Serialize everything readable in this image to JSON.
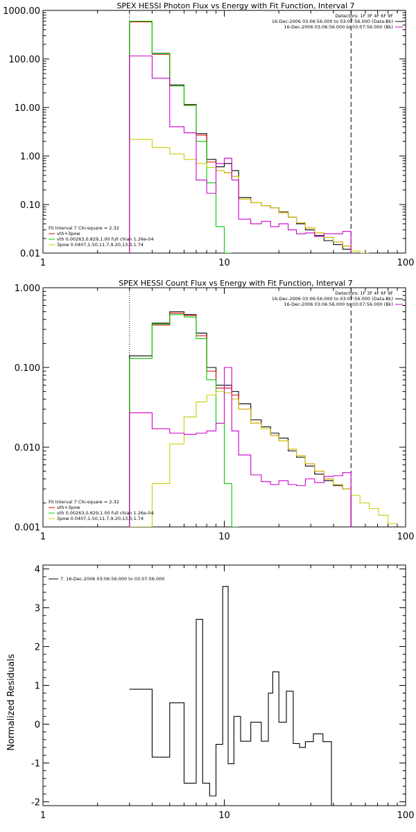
{
  "chart_data": [
    {
      "type": "line",
      "step": true,
      "title": "SPEX HESSI Photon Flux vs Energy with Fit Function, Interval 7",
      "xlabel": "",
      "ylabel": "",
      "xscale": "log",
      "yscale": "log",
      "xlim": [
        1,
        100
      ],
      "ylim": [
        0.01,
        1000
      ],
      "xticks": [
        1,
        10,
        100
      ],
      "xtick_labels": [
        "1",
        "10",
        "100"
      ],
      "yticks": [
        0.01,
        0.1,
        1,
        10,
        100,
        1000
      ],
      "ytick_labels": [
        "0.01",
        "0.10",
        "1.00",
        "10.00",
        "100.00",
        "1000.00"
      ],
      "grid": false,
      "fit_range_markers": [
        3,
        50
      ],
      "detector_legend": {
        "placement": "top-right",
        "header": "Detectors: 1F 3F 4F 6F 9F",
        "entries": [
          {
            "label": "16-Dec-2006 03:06:56.000 to 03:07:56.000 (Data-Bk)",
            "color": "#000000"
          },
          {
            "label": "16-Dec-2006 03:06:56.000 to 03:07:56.000 (Bk)",
            "color": "#cc00cc"
          }
        ]
      },
      "fit_legend": {
        "placement": "bottom-left",
        "header": "Fit Interval 7   Chi-square = 2.32",
        "entries": [
          {
            "label": "vth+3pow",
            "color": "#dd0000"
          },
          {
            "label": "vth 0.00263,0.829,1.00  full chian 1.26e-04",
            "color": "#00cc00"
          },
          {
            "label": "3pow 0.0407,1.50,11.7,9.20,13.0,1.74",
            "color": "#cccc00"
          }
        ]
      },
      "edges": [
        3,
        4,
        5,
        6,
        7,
        8,
        9,
        10,
        11,
        12,
        14,
        16,
        18,
        20,
        22.5,
        25,
        28,
        31.5,
        35.5,
        40,
        45,
        50,
        56,
        63
      ],
      "series": [
        {
          "name": "Data-Bk",
          "color": "#000000",
          "values": [
            600,
            130,
            29,
            11.5,
            2.9,
            0.85,
            0.6,
            0.7,
            0.5,
            0.14,
            0.11,
            0.095,
            0.085,
            0.07,
            0.055,
            0.04,
            0.03,
            0.023,
            0.018,
            0.015,
            0.012,
            null,
            null
          ]
        },
        {
          "name": "vth+3pow",
          "color": "#dd0000",
          "values": [
            580,
            125,
            28,
            11.2,
            2.7,
            0.75,
            0.5,
            0.45,
            0.38,
            0.13,
            0.11,
            0.095,
            0.085,
            0.068,
            0.055,
            0.042,
            0.033,
            0.026,
            0.021,
            0.017,
            0.014,
            null,
            null
          ]
        },
        {
          "name": "vth",
          "color": "#00cc00",
          "values": [
            600,
            128,
            28,
            11,
            2.0,
            0.28,
            0.035,
            0.004,
            null,
            null,
            null,
            null,
            null,
            null,
            null,
            null,
            null,
            null,
            null,
            null,
            null,
            null,
            null
          ]
        },
        {
          "name": "3pow",
          "color": "#cccc00",
          "values": [
            2.2,
            1.5,
            1.1,
            0.85,
            0.7,
            0.58,
            0.5,
            0.45,
            0.38,
            0.13,
            0.11,
            0.095,
            0.085,
            0.068,
            0.055,
            0.042,
            0.033,
            0.026,
            0.021,
            0.017,
            0.014,
            0.011,
            0.009
          ]
        },
        {
          "name": "Bk",
          "color": "#cc00cc",
          "values": [
            115,
            40,
            4.0,
            3.0,
            0.32,
            0.17,
            0.7,
            0.9,
            0.32,
            0.05,
            0.04,
            0.045,
            0.035,
            0.04,
            0.03,
            0.025,
            0.026,
            0.022,
            0.025,
            0.025,
            0.028,
            null,
            null
          ]
        }
      ]
    },
    {
      "type": "line",
      "step": true,
      "title": "SPEX HESSI Count Flux vs Energy with Fit Function, Interval 7",
      "xlabel": "",
      "ylabel": "",
      "xscale": "log",
      "yscale": "log",
      "xlim": [
        1,
        100
      ],
      "ylim": [
        0.001,
        1
      ],
      "xticks": [
        1,
        10,
        100
      ],
      "xtick_labels": [
        "1",
        "10",
        "100"
      ],
      "yticks": [
        0.001,
        0.01,
        0.1,
        1
      ],
      "ytick_labels": [
        "0.001",
        "0.010",
        "0.100",
        "1.000"
      ],
      "grid": false,
      "fit_range_markers": [
        3,
        50
      ],
      "detector_legend": {
        "placement": "top-right",
        "header": "Detectors: 1F 3F 4F 6F 9F",
        "entries": [
          {
            "label": "16-Dec-2006 03:06:56.000 to 03:07:56.000 (Data-Bk)",
            "color": "#000000"
          },
          {
            "label": "16-Dec-2006 03:06:56.000 to 03:07:56.000 (Bk)",
            "color": "#cc00cc"
          }
        ]
      },
      "fit_legend": {
        "placement": "bottom-left",
        "header": "Fit Interval 7   Chi-square = 2.32",
        "entries": [
          {
            "label": "vth+3pow",
            "color": "#dd0000"
          },
          {
            "label": "vth 0.00263,0.829,1.00  full chian 1.26e-04",
            "color": "#00cc00"
          },
          {
            "label": "3pow 0.0407,1.50,11.7,9.20,13.0,1.74",
            "color": "#cccc00"
          }
        ]
      },
      "edges": [
        3,
        4,
        5,
        6,
        7,
        8,
        9,
        10,
        11,
        12,
        14,
        16,
        18,
        20,
        22.5,
        25,
        28,
        31.5,
        35.5,
        40,
        45,
        50,
        56,
        63,
        71,
        80,
        90
      ],
      "series": [
        {
          "name": "Data-Bk",
          "color": "#000000",
          "values": [
            0.14,
            0.36,
            0.5,
            0.46,
            0.27,
            0.1,
            0.06,
            0.06,
            0.05,
            0.035,
            0.022,
            0.018,
            0.015,
            0.013,
            0.009,
            0.0075,
            0.0058,
            0.0046,
            0.0038,
            0.0033,
            0.003,
            null,
            null,
            null,
            null,
            null
          ]
        },
        {
          "name": "vth+3pow",
          "color": "#dd0000",
          "values": [
            0.13,
            0.34,
            0.48,
            0.45,
            0.25,
            0.09,
            0.055,
            0.055,
            0.045,
            0.03,
            0.02,
            0.017,
            0.014,
            0.012,
            0.0095,
            0.0078,
            0.0062,
            0.005,
            0.004,
            0.0034,
            0.003,
            null,
            null,
            null,
            null,
            null
          ]
        },
        {
          "name": "vth",
          "color": "#00cc00",
          "values": [
            0.13,
            0.35,
            0.46,
            0.43,
            0.23,
            0.07,
            0.02,
            0.0035,
            0.0007,
            null,
            null,
            null,
            null,
            null,
            null,
            null,
            null,
            null,
            null,
            null,
            null,
            null,
            null,
            null,
            null,
            null
          ]
        },
        {
          "name": "3pow",
          "color": "#cccc00",
          "values": [
            0.0005,
            0.0035,
            0.011,
            0.024,
            0.037,
            0.045,
            0.05,
            0.048,
            0.04,
            0.03,
            0.02,
            0.017,
            0.014,
            0.012,
            0.0095,
            0.0078,
            0.0062,
            0.005,
            0.004,
            0.0034,
            0.003,
            0.0025,
            0.002,
            0.0017,
            0.0014,
            0.0011
          ]
        },
        {
          "name": "Bk",
          "color": "#cc00cc",
          "values": [
            0.027,
            0.017,
            0.015,
            0.0145,
            0.015,
            0.016,
            0.02,
            0.1,
            0.016,
            0.008,
            0.0045,
            0.0037,
            0.0034,
            0.0038,
            0.0034,
            0.0033,
            0.004,
            0.0036,
            0.0043,
            0.0044,
            0.0048,
            null,
            null,
            null,
            null,
            null
          ]
        }
      ]
    },
    {
      "type": "line",
      "step": true,
      "title": "",
      "xlabel": "",
      "ylabel": "Normalized Residuals",
      "xscale": "log",
      "yscale": "linear",
      "xlim": [
        1,
        100
      ],
      "ylim": [
        -2.1,
        4.1
      ],
      "xticks": [
        1,
        10,
        100
      ],
      "xtick_labels": [
        "1",
        "10",
        "100"
      ],
      "yticks": [
        -2,
        -1,
        0,
        1,
        2,
        3,
        4
      ],
      "ytick_labels": [
        "-2",
        "-1",
        "0",
        "1",
        "2",
        "3",
        "4"
      ],
      "grid": false,
      "legend": {
        "placement": "top-left",
        "entries": [
          {
            "label": "7. 16-Dec-2006 03:06:56.000 to 03:07:56.000",
            "color": "#000000"
          }
        ]
      },
      "edges": [
        3,
        4,
        5,
        6,
        7,
        7.6,
        8.3,
        9,
        9.8,
        10.5,
        11.3,
        12.3,
        14,
        16,
        17.5,
        18.5,
        20,
        22,
        24,
        26,
        28,
        31,
        35,
        39,
        44,
        50
      ],
      "series": [
        {
          "name": "7. 16-Dec-2006 03:06:56.000 to 03:07:56.000",
          "color": "#000000",
          "values": [
            0.9,
            -0.85,
            0.55,
            -1.52,
            2.7,
            -1.52,
            -1.85,
            -0.52,
            3.55,
            -1.02,
            0.2,
            -0.44,
            0.05,
            -0.44,
            0.8,
            1.35,
            0.05,
            0.85,
            -0.5,
            -0.6,
            -0.45,
            -0.25,
            -0.45,
            null,
            null
          ]
        }
      ]
    }
  ]
}
